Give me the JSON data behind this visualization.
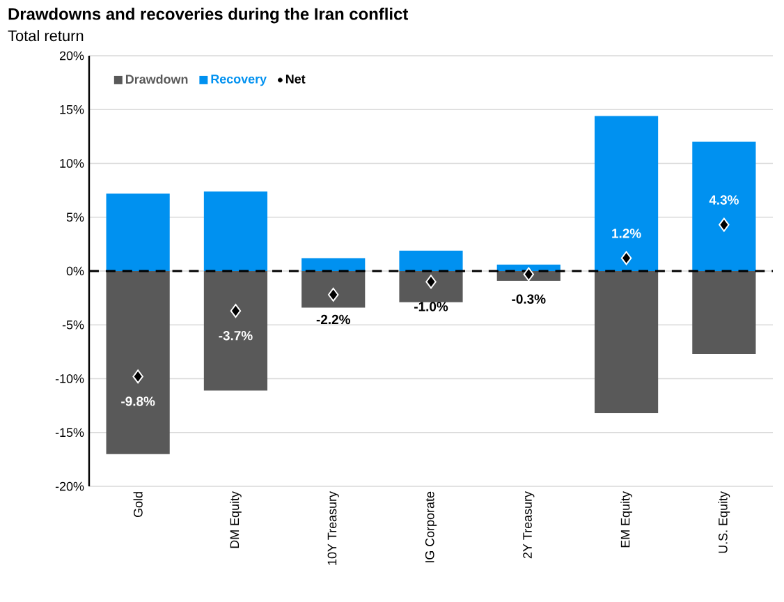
{
  "chart_data": {
    "type": "bar",
    "title": "Drawdowns and recoveries during the Iran conflict",
    "subtitle": "Total return",
    "categories": [
      "Gold",
      "DM Equity",
      "10Y Treasury",
      "IG Corporate",
      "2Y Treasury",
      "EM Equity",
      "U.S. Equity"
    ],
    "series": [
      {
        "name": "Drawdown",
        "color": "#595959",
        "values": [
          -17.0,
          -11.1,
          -3.4,
          -2.9,
          -0.9,
          -13.2,
          -7.7
        ]
      },
      {
        "name": "Recovery",
        "color": "#0091f0",
        "values": [
          7.2,
          7.4,
          1.2,
          1.9,
          0.6,
          14.4,
          12.0
        ]
      },
      {
        "name": "Net",
        "type": "scatter",
        "color": "#000000",
        "marker": "diamond",
        "x": [
          "Gold",
          "DM Equity",
          "10Y Treasury",
          "IG Corporate",
          "2Y Treasury",
          "EM Equity",
          "U.S. Equity"
        ],
        "values": [
          -9.8,
          -3.7,
          -2.2,
          -1.0,
          -0.3,
          1.2,
          4.3
        ],
        "value_labels": [
          "-9.8%",
          "-3.7%",
          "-2.2%",
          "-1.0%",
          "-0.3%",
          "1.2%",
          "4.3%"
        ]
      }
    ],
    "ylim": [
      -20,
      20
    ],
    "yticks": [
      {
        "value": -20,
        "label": "-20%"
      },
      {
        "value": -15,
        "label": "-15%"
      },
      {
        "value": -10,
        "label": "-10%"
      },
      {
        "value": -5,
        "label": "-5%"
      },
      {
        "value": 0,
        "label": "0%"
      },
      {
        "value": 5,
        "label": "5%"
      },
      {
        "value": 10,
        "label": "10%"
      },
      {
        "value": 15,
        "label": "15%"
      },
      {
        "value": 20,
        "label": "20%"
      }
    ],
    "grid": "y",
    "legend": "top left",
    "stacked": true,
    "ref_lines": [
      {
        "axis": "y",
        "value": 0,
        "color": "#000000",
        "line_style": "dashed"
      }
    ]
  }
}
